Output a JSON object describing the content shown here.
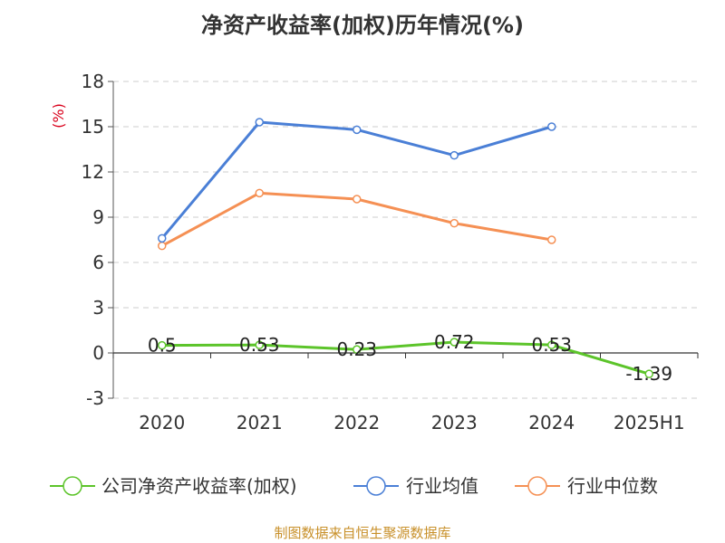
{
  "chart_data": {
    "type": "line",
    "title": "净资产收益率(加权)历年情况(%)",
    "ylabel": "(%)",
    "xlabel": "",
    "categories": [
      "2020",
      "2021",
      "2022",
      "2023",
      "2024",
      "2025H1"
    ],
    "ylim": [
      -3,
      18
    ],
    "yticks": [
      -3,
      0,
      3,
      6,
      9,
      12,
      15,
      18
    ],
    "grid": true,
    "legend_position": "bottom",
    "series": [
      {
        "name": "公司净资产收益率(加权)",
        "color": "#5cc42a",
        "values": [
          0.5,
          0.53,
          0.23,
          0.72,
          0.53,
          -1.39
        ],
        "labels": [
          "0.5",
          "0.53",
          "0.23",
          "0.72",
          "0.53",
          "-1.39"
        ]
      },
      {
        "name": "行业均值",
        "color": "#4a7fd6",
        "values": [
          7.6,
          15.3,
          14.8,
          13.1,
          15.0,
          null
        ]
      },
      {
        "name": "行业中位数",
        "color": "#f59054",
        "values": [
          7.1,
          10.6,
          10.2,
          8.6,
          7.5,
          null
        ]
      }
    ]
  },
  "source": "制图数据来自恒生聚源数据库"
}
